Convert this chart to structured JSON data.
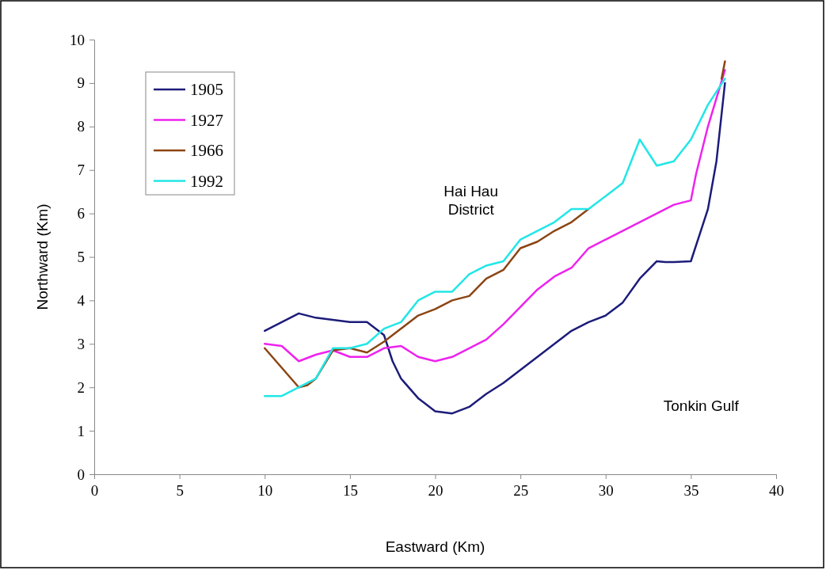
{
  "chart_data": {
    "type": "line",
    "xlabel": "Eastward (Km)",
    "ylabel": "Northward (Km)",
    "xlim": [
      0,
      40
    ],
    "xticks": [
      0,
      5,
      10,
      15,
      20,
      25,
      30,
      35,
      40
    ],
    "ylim": [
      0,
      10
    ],
    "yticks": [
      0,
      1,
      2,
      3,
      4,
      5,
      6,
      7,
      8,
      9,
      10
    ],
    "grid": false,
    "legend": "top left",
    "marker": "none",
    "line_style": "solid",
    "annotations": [
      "Hai Hau\nDistrict",
      "Tonkin Gulf"
    ],
    "series": [
      {
        "name": "1905",
        "color": "#1c1c7a",
        "x": [
          10,
          11,
          12,
          13,
          14,
          15,
          16,
          16.5,
          17,
          17.5,
          18,
          19,
          20,
          21,
          22,
          23,
          24,
          25,
          26,
          27,
          28,
          29,
          30,
          31,
          32,
          33,
          33.5,
          34,
          35,
          35.5,
          36,
          36.5,
          37
        ],
        "values": [
          3.3,
          3.5,
          3.7,
          3.6,
          3.55,
          3.5,
          3.5,
          3.35,
          3.2,
          2.6,
          2.2,
          1.75,
          1.45,
          1.4,
          1.55,
          1.85,
          2.1,
          2.4,
          2.7,
          3.0,
          3.3,
          3.5,
          3.65,
          3.95,
          4.5,
          4.9,
          4.88,
          4.88,
          4.9,
          5.5,
          6.1,
          7.2,
          9.0
        ]
      },
      {
        "name": "1927",
        "color": "#ee22ee",
        "x": [
          10,
          11,
          12,
          13,
          14,
          15,
          16,
          17,
          18,
          19,
          20,
          21,
          22,
          23,
          24,
          25,
          26,
          27,
          28,
          29,
          30,
          31,
          32,
          33,
          34,
          35,
          35.3,
          36,
          37
        ],
        "values": [
          3.0,
          2.95,
          2.6,
          2.75,
          2.85,
          2.7,
          2.7,
          2.9,
          2.95,
          2.7,
          2.6,
          2.7,
          2.9,
          3.1,
          3.45,
          3.85,
          4.25,
          4.55,
          4.75,
          5.2,
          5.4,
          5.6,
          5.8,
          6.0,
          6.2,
          6.3,
          6.9,
          8.0,
          9.3
        ]
      },
      {
        "name": "1966",
        "color": "#8b4513",
        "x": [
          10,
          11,
          12,
          12.5,
          13,
          14,
          15,
          16,
          17,
          18,
          19,
          20,
          21,
          22,
          23,
          24,
          25,
          26,
          27,
          28,
          29,
          33,
          36.8,
          37
        ],
        "values": [
          2.9,
          2.45,
          2.0,
          2.05,
          2.2,
          2.85,
          2.9,
          2.8,
          3.05,
          3.35,
          3.65,
          3.8,
          4.0,
          4.1,
          4.5,
          4.7,
          5.2,
          5.35,
          5.6,
          5.8,
          6.1,
          null,
          9.1,
          9.5
        ]
      },
      {
        "name": "1992",
        "color": "#22e6e6",
        "x": [
          10,
          11,
          12,
          13,
          14,
          15,
          16,
          17,
          18,
          19,
          20,
          21,
          22,
          23,
          24,
          25,
          26,
          27,
          28,
          29,
          30,
          31,
          31.5,
          32,
          33,
          34,
          35,
          36,
          37
        ],
        "values": [
          1.8,
          1.8,
          2.0,
          2.2,
          2.9,
          2.9,
          3.0,
          3.35,
          3.5,
          4.0,
          4.2,
          4.2,
          4.6,
          4.8,
          4.9,
          5.4,
          5.6,
          5.8,
          6.1,
          6.1,
          6.4,
          6.7,
          7.2,
          7.7,
          7.1,
          7.2,
          7.7,
          8.5,
          9.1
        ]
      }
    ]
  }
}
